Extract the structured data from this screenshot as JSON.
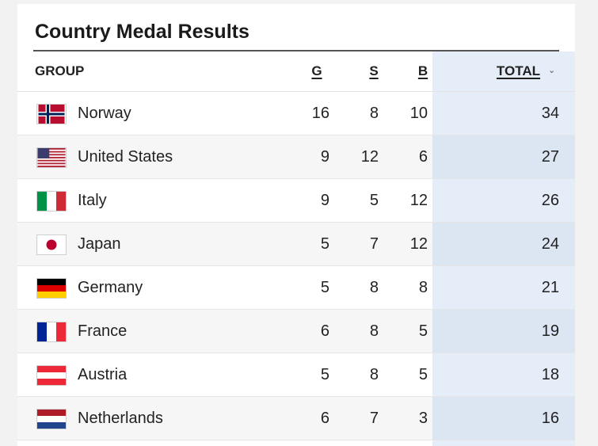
{
  "title": "Country Medal Results",
  "columns": {
    "group": "GROUP",
    "gold": "G",
    "silver": "S",
    "bronze": "B",
    "total": "TOTAL",
    "sort_icon": "chevron-down-icon"
  },
  "rows": [
    {
      "country": "Norway",
      "flag": "norway-flag-icon",
      "g": "16",
      "s": "8",
      "b": "10",
      "total": "34"
    },
    {
      "country": "United States",
      "flag": "united-states-flag-icon",
      "g": "9",
      "s": "12",
      "b": "6",
      "total": "27"
    },
    {
      "country": "Italy",
      "flag": "italy-flag-icon",
      "g": "9",
      "s": "5",
      "b": "12",
      "total": "26"
    },
    {
      "country": "Japan",
      "flag": "japan-flag-icon",
      "g": "5",
      "s": "7",
      "b": "12",
      "total": "24"
    },
    {
      "country": "Germany",
      "flag": "germany-flag-icon",
      "g": "5",
      "s": "8",
      "b": "8",
      "total": "21"
    },
    {
      "country": "France",
      "flag": "france-flag-icon",
      "g": "6",
      "s": "8",
      "b": "5",
      "total": "19"
    },
    {
      "country": "Austria",
      "flag": "austria-flag-icon",
      "g": "5",
      "s": "8",
      "b": "5",
      "total": "18"
    },
    {
      "country": "Netherlands",
      "flag": "netherlands-flag-icon",
      "g": "6",
      "s": "7",
      "b": "3",
      "total": "16"
    }
  ],
  "colors": {
    "total_column_bg": "#e4edf8",
    "text": "#222222"
  }
}
